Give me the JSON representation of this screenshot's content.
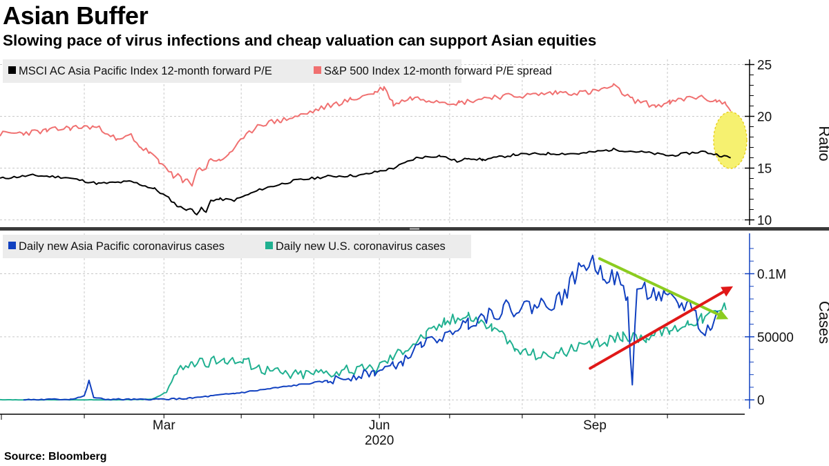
{
  "title": "Asian Buffer",
  "subtitle": "Slowing pace of virus infections and cheap valuation can support Asian equities",
  "source": "Source: Bloomberg",
  "colors": {
    "msci": "#000000",
    "spx": "#f07070",
    "asia_cases": "#1040c0",
    "us_cases": "#20b090",
    "highlight": "#f5f060",
    "down_arrow": "#8ccc20",
    "up_arrow": "#e01818",
    "grid": "#c8c8c8"
  },
  "chart_data": [
    {
      "type": "line",
      "panel": "top",
      "ylabel": "Ratio",
      "ylim": [
        9.5,
        25.5
      ],
      "yticks": [
        10,
        15,
        20,
        25
      ],
      "ytick_labels": [
        "10",
        "15",
        "20",
        "25"
      ],
      "x_domain_days": [
        0,
        318
      ],
      "series": [
        {
          "name": "MSCI AC Asia Pacific Index 12-month forward P/E",
          "color_key": "msci",
          "x_days": [
            0,
            14,
            28,
            42,
            56,
            66,
            72,
            76,
            80,
            82,
            84,
            86,
            88,
            90,
            94,
            100,
            112,
            126,
            140,
            154,
            168,
            178,
            188,
            196,
            200,
            206,
            220,
            234,
            248,
            262,
            276,
            286,
            300,
            308,
            312
          ],
          "values": [
            14.0,
            14.3,
            14.1,
            13.5,
            13.7,
            13.0,
            12.1,
            11.3,
            11.0,
            11.0,
            10.6,
            11.1,
            10.7,
            11.9,
            12.0,
            11.9,
            13.0,
            13.8,
            14.2,
            14.3,
            15.0,
            16.0,
            16.2,
            15.6,
            16.0,
            15.8,
            16.3,
            16.4,
            16.4,
            16.8,
            16.5,
            16.2,
            16.6,
            16.2,
            16.0
          ]
        },
        {
          "name": "S&P 500 Index 12-month forward P/E spread",
          "color_key": "spx",
          "x_days": [
            0,
            10,
            20,
            30,
            40,
            46,
            50,
            56,
            60,
            64,
            68,
            72,
            74,
            76,
            78,
            80,
            82,
            84,
            88,
            90,
            94,
            98,
            104,
            110,
            120,
            130,
            140,
            150,
            160,
            164,
            168,
            176,
            184,
            196,
            210,
            224,
            238,
            252,
            262,
            270,
            280,
            286,
            296,
            306,
            310,
            312
          ],
          "values": [
            18.3,
            18.4,
            18.6,
            18.9,
            19.0,
            18.5,
            17.6,
            18.2,
            17.0,
            16.5,
            15.5,
            14.9,
            14.0,
            14.4,
            13.6,
            13.8,
            13.5,
            14.8,
            15.0,
            16.0,
            15.6,
            16.5,
            17.8,
            19.2,
            19.6,
            20.2,
            21.0,
            21.6,
            22.3,
            22.8,
            21.2,
            21.8,
            21.6,
            21.3,
            21.9,
            22.0,
            22.3,
            22.3,
            22.9,
            21.6,
            21.0,
            21.3,
            21.9,
            21.5,
            21.2,
            20.5
          ]
        }
      ],
      "legend": [
        "MSCI AC Asia Pacific Index 12-month forward P/E",
        "S&P 500 Index 12-month forward P/E spread"
      ],
      "annotation": "highlight ellipse at latest values"
    },
    {
      "type": "line",
      "panel": "bottom",
      "ylabel": "Cases",
      "ylim": [
        -7000,
        132000
      ],
      "yticks": [
        0,
        50000,
        100000
      ],
      "ytick_labels": [
        "0",
        "50000",
        "0.1M"
      ],
      "x_domain_days": [
        0,
        318
      ],
      "xtick_labels": [
        {
          "label": "Mar",
          "day": 70
        },
        {
          "label": "Jun",
          "day": 162
        },
        {
          "label": "Sep",
          "day": 254
        },
        {
          "label": "2020",
          "day": 162
        }
      ],
      "series": [
        {
          "name": "Daily new Asia Pacific coronavirus cases",
          "color_key": "asia_cases",
          "x_days": [
            10,
            30,
            36,
            38,
            40,
            44,
            60,
            80,
            100,
            120,
            140,
            160,
            168,
            172,
            180,
            190,
            200,
            215,
            230,
            240,
            246,
            252,
            258,
            264,
            268,
            270,
            272,
            278,
            284,
            290,
            296,
            300,
            304,
            308
          ],
          "values": [
            0,
            500,
            3000,
            15000,
            2000,
            500,
            200,
            1000,
            5000,
            10000,
            15000,
            22000,
            27000,
            30000,
            45000,
            50000,
            63000,
            72000,
            75000,
            80000,
            100000,
            110000,
            100000,
            95000,
            80000,
            10000,
            90000,
            85000,
            80000,
            75000,
            75000,
            50000,
            60000,
            70000
          ]
        },
        {
          "name": "Daily new U.S. coronavirus cases",
          "color_key": "us_cases",
          "x_days": [
            0,
            30,
            50,
            65,
            70,
            76,
            82,
            88,
            96,
            104,
            112,
            124,
            136,
            148,
            160,
            172,
            182,
            190,
            200,
            210,
            220,
            232,
            244,
            256,
            266,
            276,
            286,
            294,
            300,
            306,
            310
          ],
          "values": [
            0,
            0,
            0,
            500,
            5000,
            22000,
            30000,
            28000,
            33000,
            30000,
            25000,
            20000,
            22000,
            23000,
            25000,
            40000,
            52000,
            62000,
            67000,
            58000,
            40000,
            35000,
            40000,
            45000,
            50000,
            50000,
            55000,
            62000,
            65000,
            70000,
            75000
          ]
        }
      ],
      "legend": [
        "Daily new Asia Pacific coronavirus cases",
        "Daily new U.S. coronavirus cases"
      ],
      "annotations": [
        {
          "type": "arrow",
          "color_key": "down_arrow",
          "from": {
            "day": 256,
            "value": 112000
          },
          "to": {
            "day": 311,
            "value": 64000
          }
        },
        {
          "type": "arrow",
          "color_key": "up_arrow",
          "from": {
            "day": 252,
            "value": 25000
          },
          "to": {
            "day": 313,
            "value": 90000
          }
        }
      ]
    }
  ]
}
